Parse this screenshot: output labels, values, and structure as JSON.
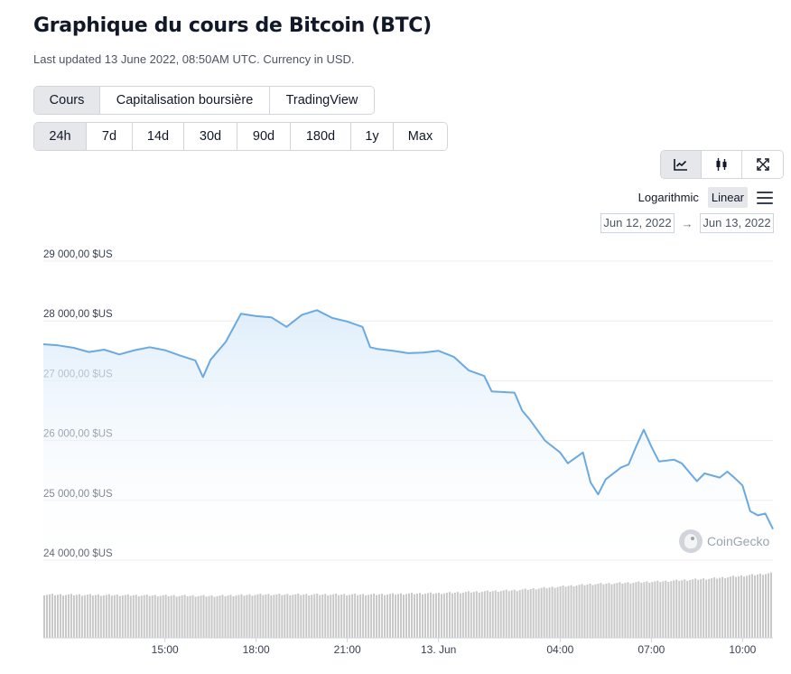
{
  "header": {
    "title": "Graphique du cours de Bitcoin (BTC)",
    "subtitle": "Last updated 13 June 2022, 08:50AM UTC. Currency in USD."
  },
  "view_tabs": [
    {
      "label": "Cours",
      "active": true
    },
    {
      "label": "Capitalisation boursière",
      "active": false
    },
    {
      "label": "TradingView",
      "active": false
    }
  ],
  "range_tabs": [
    {
      "label": "24h",
      "active": true
    },
    {
      "label": "7d",
      "active": false
    },
    {
      "label": "14d",
      "active": false
    },
    {
      "label": "30d",
      "active": false
    },
    {
      "label": "90d",
      "active": false
    },
    {
      "label": "180d",
      "active": false
    },
    {
      "label": "1y",
      "active": false
    },
    {
      "label": "Max",
      "active": false
    }
  ],
  "chart_modes": [
    {
      "icon": "line-chart-icon",
      "active": true
    },
    {
      "icon": "candlestick-icon",
      "active": false
    },
    {
      "icon": "fullscreen-icon",
      "active": false
    }
  ],
  "scale": {
    "logarithmic_label": "Logarithmic",
    "linear_label": "Linear",
    "active": "linear"
  },
  "date_range": {
    "from": "Jun 12, 2022",
    "arrow": "→",
    "to": "Jun 13, 2022"
  },
  "watermark": "CoinGecko",
  "colors": {
    "line": "#6aaae0",
    "area_top": "#dcecfa",
    "volume": "#c8c8c8",
    "grid": "#ececec"
  },
  "chart_data": {
    "type": "area",
    "x_start": "2022-06-12 11:00",
    "x_end": "2022-06-13 11:00",
    "ylim": [
      24000,
      29000
    ],
    "yticks": [
      {
        "value": 29000,
        "label": "29 000,00 $US"
      },
      {
        "value": 28000,
        "label": "28 000,00 $US"
      },
      {
        "value": 27000,
        "label": "27 000,00 $US"
      },
      {
        "value": 26000,
        "label": "26 000,00 $US"
      },
      {
        "value": 25000,
        "label": "25 000,00 $US"
      },
      {
        "value": 24000,
        "label": "24 000,00 $US"
      }
    ],
    "xticks": [
      {
        "time": "2022-06-12 15:00",
        "label": "15:00"
      },
      {
        "time": "2022-06-12 18:00",
        "label": "18:00"
      },
      {
        "time": "2022-06-12 21:00",
        "label": "21:00"
      },
      {
        "time": "2022-06-13 00:00",
        "label": "13. Jun"
      },
      {
        "time": "2022-06-13 04:00",
        "label": "04:00"
      },
      {
        "time": "2022-06-13 07:00",
        "label": "07:00"
      },
      {
        "time": "2022-06-13 10:00",
        "label": "10:00"
      }
    ],
    "series": [
      {
        "values": [
          [
            "2022-06-12 11:00",
            27610
          ],
          [
            "2022-06-12 11:30",
            27590
          ],
          [
            "2022-06-12 12:00",
            27550
          ],
          [
            "2022-06-12 12:30",
            27480
          ],
          [
            "2022-06-12 13:00",
            27520
          ],
          [
            "2022-06-12 13:30",
            27440
          ],
          [
            "2022-06-12 14:00",
            27510
          ],
          [
            "2022-06-12 14:30",
            27560
          ],
          [
            "2022-06-12 15:00",
            27510
          ],
          [
            "2022-06-12 15:30",
            27420
          ],
          [
            "2022-06-12 16:00",
            27340
          ],
          [
            "2022-06-12 16:15",
            27060
          ],
          [
            "2022-06-12 16:30",
            27350
          ],
          [
            "2022-06-12 17:00",
            27650
          ],
          [
            "2022-06-12 17:30",
            28120
          ],
          [
            "2022-06-12 18:00",
            28080
          ],
          [
            "2022-06-12 18:30",
            28060
          ],
          [
            "2022-06-12 19:00",
            27900
          ],
          [
            "2022-06-12 19:30",
            28100
          ],
          [
            "2022-06-12 20:00",
            28180
          ],
          [
            "2022-06-12 20:30",
            28050
          ],
          [
            "2022-06-12 21:00",
            27990
          ],
          [
            "2022-06-12 21:30",
            27900
          ],
          [
            "2022-06-12 21:45",
            27560
          ],
          [
            "2022-06-12 22:00",
            27530
          ],
          [
            "2022-06-12 22:30",
            27500
          ],
          [
            "2022-06-12 23:00",
            27460
          ],
          [
            "2022-06-12 23:30",
            27470
          ],
          [
            "2022-06-13 00:00",
            27500
          ],
          [
            "2022-06-13 00:30",
            27400
          ],
          [
            "2022-06-13 01:00",
            27170
          ],
          [
            "2022-06-13 01:30",
            27080
          ],
          [
            "2022-06-13 01:45",
            26820
          ],
          [
            "2022-06-13 02:30",
            26800
          ],
          [
            "2022-06-13 02:45",
            26500
          ],
          [
            "2022-06-13 03:00",
            26350
          ],
          [
            "2022-06-13 03:30",
            26000
          ],
          [
            "2022-06-13 04:00",
            25800
          ],
          [
            "2022-06-13 04:15",
            25620
          ],
          [
            "2022-06-13 04:45",
            25800
          ],
          [
            "2022-06-13 05:00",
            25300
          ],
          [
            "2022-06-13 05:15",
            25100
          ],
          [
            "2022-06-13 05:30",
            25350
          ],
          [
            "2022-06-13 06:00",
            25550
          ],
          [
            "2022-06-13 06:15",
            25600
          ],
          [
            "2022-06-13 06:30",
            25900
          ],
          [
            "2022-06-13 06:45",
            26180
          ],
          [
            "2022-06-13 07:00",
            25900
          ],
          [
            "2022-06-13 07:15",
            25650
          ],
          [
            "2022-06-13 07:45",
            25680
          ],
          [
            "2022-06-13 08:00",
            25620
          ],
          [
            "2022-06-13 08:30",
            25320
          ],
          [
            "2022-06-13 08:45",
            25450
          ],
          [
            "2022-06-13 09:15",
            25380
          ],
          [
            "2022-06-13 09:30",
            25480
          ],
          [
            "2022-06-13 09:45",
            25370
          ],
          [
            "2022-06-13 10:00",
            25250
          ],
          [
            "2022-06-13 10:15",
            24820
          ],
          [
            "2022-06-13 10:30",
            24750
          ],
          [
            "2022-06-13 10:45",
            24780
          ],
          [
            "2022-06-13 11:00",
            24520
          ]
        ]
      }
    ],
    "volume": {
      "relative_levels": [
        [
          0.0,
          0.58
        ],
        [
          0.23,
          0.56
        ],
        [
          0.3,
          0.58
        ],
        [
          0.45,
          0.58
        ],
        [
          0.55,
          0.6
        ],
        [
          0.65,
          0.64
        ],
        [
          0.75,
          0.72
        ],
        [
          0.85,
          0.76
        ],
        [
          0.92,
          0.8
        ],
        [
          1.0,
          0.87
        ]
      ]
    },
    "grid": true,
    "legend": "none"
  }
}
